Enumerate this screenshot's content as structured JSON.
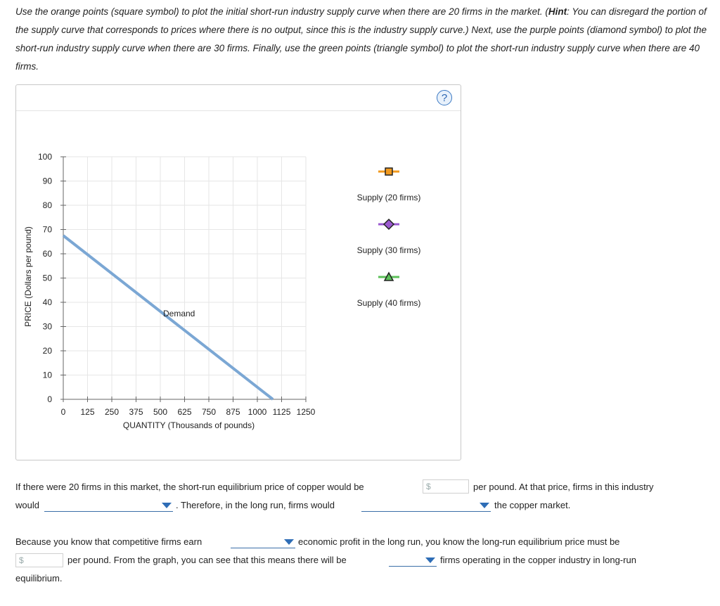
{
  "instructions": {
    "part1": "Use the orange points (square symbol) to plot the initial short-run industry supply curve when there are 20 firms in the market. (",
    "hint_label": "Hint",
    "part2": ": You can disregard the portion of the supply curve that corresponds to prices where there is no output, since this is the industry supply curve.) Next, use the purple points (diamond symbol) to plot the short-run industry supply curve when there are 30 firms. Finally, use the green points (triangle symbol) to plot the short-run industry supply curve when there are 40 firms."
  },
  "graph": {
    "help_label": "?",
    "demand_label": "Demand",
    "legend": [
      {
        "label": "Supply (20 firms)",
        "color": "#f29a1e",
        "marker": "square"
      },
      {
        "label": "Supply (30 firms)",
        "color": "#9b59d0",
        "marker": "diamond"
      },
      {
        "label": "Supply (40 firms)",
        "color": "#5cc159",
        "marker": "triangle"
      }
    ]
  },
  "chart_data": {
    "type": "line",
    "xlabel": "QUANTITY (Thousands of pounds)",
    "ylabel": "PRICE (Dollars per pound)",
    "xlim": [
      0,
      1250
    ],
    "ylim": [
      0,
      100
    ],
    "x_ticks": [
      0,
      125,
      250,
      375,
      500,
      625,
      750,
      875,
      1000,
      1125,
      1250
    ],
    "y_ticks": [
      0,
      10,
      20,
      30,
      40,
      50,
      60,
      70,
      80,
      90,
      100
    ],
    "grid": true,
    "series": [
      {
        "name": "Demand",
        "color": "#7ba7d4",
        "points": [
          [
            0,
            67.5
          ],
          [
            1080,
            0
          ]
        ]
      }
    ]
  },
  "questions": {
    "q1_a": "If there were 20 firms in this market, the short-run equilibrium price of copper would be",
    "q1_b": "per pound. At that price, firms in this industry",
    "q1_c": "would",
    "q1_d": ". Therefore, in the long run, firms would",
    "q1_e": "the copper market.",
    "q2_a": "Because you know that competitive firms earn",
    "q2_b": "economic profit in the long run, you know the long-run equilibrium price must be",
    "q2_c": "per pound. From the graph, you can see that this means there will be",
    "q2_d": "firms operating in the copper industry in long-run",
    "q2_e": "equilibrium.",
    "dollar_sign": "$"
  }
}
